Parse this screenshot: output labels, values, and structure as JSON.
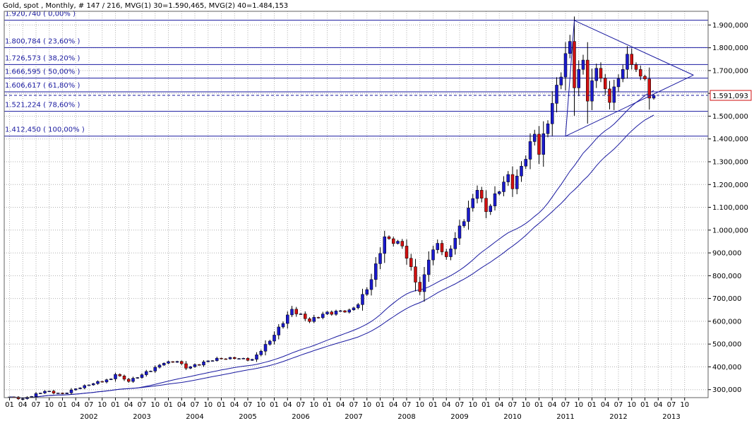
{
  "header": {
    "title": "Gold, spot , Monthly, # 147 / 216, MVG(1) 30=1.590,465, MVG(2) 40=1.484,153"
  },
  "colors": {
    "up": "#1a1acc",
    "down": "#d01010",
    "line": "#1a1aa0",
    "grid": "#b0b0b0",
    "frame": "#606060",
    "last_price": "#d01010"
  },
  "last_price_label": "1.591,093",
  "chart_data": {
    "type": "candlestick",
    "title": "Gold, spot , Monthly, # 147 / 216, MVG(1) 30=1.590,465, MVG(2) 40=1.484,153",
    "ylim": [
      265,
      1960
    ],
    "y_ticks": [
      300,
      400,
      500,
      600,
      700,
      800,
      900,
      1000,
      1100,
      1200,
      1300,
      1400,
      1500,
      1600,
      1700,
      1800,
      1900
    ],
    "y_tick_labels": [
      "300,000",
      "400,000",
      "500,000",
      "600,000",
      "700,000",
      "800,000",
      "900,000",
      "1.000,000",
      "1.100,000",
      "1.200,000",
      "1.300,000",
      "1.400,000",
      "1.500,000",
      "1.600,000",
      "1.700,000",
      "1.800,000",
      "1.900,000"
    ],
    "grid": true,
    "x_start": "2001-01",
    "x_end": "2013-12",
    "month_ticks": [
      "01",
      "04",
      "07",
      "10"
    ],
    "year_labels": [
      "2002",
      "2003",
      "2004",
      "2005",
      "2006",
      "2007",
      "2008",
      "2009",
      "2010",
      "2011",
      "2012",
      "2013"
    ],
    "fib_levels": [
      {
        "value": 1920.74,
        "label": "1.920,740 ( 0,00% )"
      },
      {
        "value": 1800.784,
        "label": "1.800,784 ( 23,60% )"
      },
      {
        "value": 1726.573,
        "label": "1.726,573 ( 38,20% )"
      },
      {
        "value": 1666.595,
        "label": "1.666,595 ( 50,00% )"
      },
      {
        "value": 1606.617,
        "label": "1.606,617 ( 61,80% )"
      },
      {
        "value": 1521.224,
        "label": "1.521,224 ( 78,60% )"
      },
      {
        "value": 1412.45,
        "label": "1.412,450 ( 100,00% )"
      }
    ],
    "last_price": 1591.093,
    "anchor_points": [
      {
        "date": "2001-01",
        "price": 268
      },
      {
        "date": "2001-04",
        "price": 260
      },
      {
        "date": "2001-09",
        "price": 293
      },
      {
        "date": "2002-01",
        "price": 282
      },
      {
        "date": "2002-06",
        "price": 318
      },
      {
        "date": "2002-12",
        "price": 347
      },
      {
        "date": "2003-01",
        "price": 367
      },
      {
        "date": "2003-04",
        "price": 336
      },
      {
        "date": "2003-12",
        "price": 416
      },
      {
        "date": "2004-03",
        "price": 424
      },
      {
        "date": "2004-05",
        "price": 394
      },
      {
        "date": "2004-12",
        "price": 438
      },
      {
        "date": "2005-04",
        "price": 436
      },
      {
        "date": "2005-08",
        "price": 433
      },
      {
        "date": "2005-12",
        "price": 513
      },
      {
        "date": "2006-05",
        "price": 653
      },
      {
        "date": "2006-09",
        "price": 599
      },
      {
        "date": "2006-12",
        "price": 632
      },
      {
        "date": "2007-06",
        "price": 650
      },
      {
        "date": "2007-08",
        "price": 673
      },
      {
        "date": "2007-11",
        "price": 783
      },
      {
        "date": "2008-02",
        "price": 971
      },
      {
        "date": "2008-06",
        "price": 930
      },
      {
        "date": "2008-10",
        "price": 730
      },
      {
        "date": "2008-12",
        "price": 869
      },
      {
        "date": "2009-02",
        "price": 942
      },
      {
        "date": "2009-04",
        "price": 883
      },
      {
        "date": "2009-11",
        "price": 1175
      },
      {
        "date": "2010-01",
        "price": 1081
      },
      {
        "date": "2010-06",
        "price": 1244
      },
      {
        "date": "2010-07",
        "price": 1181
      },
      {
        "date": "2010-12",
        "price": 1421
      },
      {
        "date": "2011-01",
        "price": 1332
      },
      {
        "date": "2011-04",
        "price": 1556
      },
      {
        "date": "2011-08",
        "price": 1828
      },
      {
        "date": "2011-09",
        "price": 1624
      },
      {
        "date": "2011-11",
        "price": 1746
      },
      {
        "date": "2011-12",
        "price": 1566
      },
      {
        "date": "2012-02",
        "price": 1710
      },
      {
        "date": "2012-05",
        "price": 1560
      },
      {
        "date": "2012-09",
        "price": 1772
      },
      {
        "date": "2012-12",
        "price": 1675
      },
      {
        "date": "2013-01",
        "price": 1663
      },
      {
        "date": "2013-02",
        "price": 1579
      },
      {
        "date": "2013-03",
        "price": 1591
      }
    ],
    "ma_30_end": 1590.465,
    "ma_40_end": 1484.153,
    "triangle": {
      "apex": {
        "date": "2011-09",
        "price": 1920
      },
      "upper_touch": {
        "date": "2012-10",
        "price": 1795
      },
      "lower_start": {
        "date": "2011-07",
        "price": 1412
      },
      "lower_touch": {
        "date": "2013-03",
        "price": 1580
      },
      "right_point": {
        "date": "2013-12",
        "price": 1680
      }
    }
  }
}
